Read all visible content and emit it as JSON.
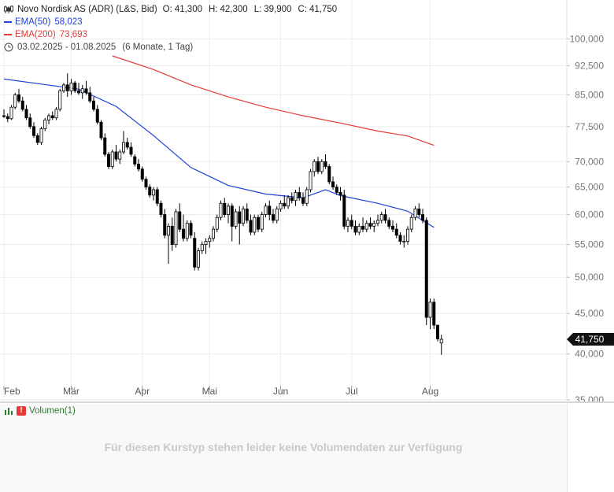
{
  "header": {
    "name": "Novo Nordisk AS (ADR) (L&S, Bid)",
    "open_label": "O:",
    "open": "41,300",
    "high_label": "H:",
    "high": "42,300",
    "low_label": "L:",
    "low": "39,900",
    "close_label": "C:",
    "close": "41,750",
    "ema50_label": "EMA(50)",
    "ema50_value": "58,023",
    "ema200_label": "EMA(200)",
    "ema200_value": "73,693",
    "date_range": "03.02.2025 - 01.08.2025",
    "period": "(6 Monate, 1 Tag)"
  },
  "volume_panel": {
    "label": "Volumen(1)",
    "message": "Für diesen Kurstyp stehen leider keine Volumendaten zur Verfügung"
  },
  "chart_data": {
    "type": "candlestick",
    "price_scale": "log",
    "ylim": [
      35000,
      112000
    ],
    "y_ticks": [
      35000,
      40000,
      45000,
      50000,
      55000,
      60000,
      65000,
      70000,
      77500,
      85000,
      92500,
      100000
    ],
    "y_tick_labels": [
      "35,000",
      "40,000",
      "45,000",
      "50,000",
      "55,000",
      "60,000",
      "65,000",
      "70,000",
      "77,500",
      "85,000",
      "92,500",
      "100,000"
    ],
    "x_tick_labels": [
      "Feb",
      "Mär",
      "Apr",
      "Mai",
      "Jun",
      "Jul",
      "Aug"
    ],
    "last_price_label": "41,750",
    "last_price": 41750,
    "grid": true,
    "colors": {
      "up": "#ffffff",
      "down": "#000000",
      "ema50": "#1f3fd6",
      "ema200": "#e53935",
      "grid": "#ececec",
      "axis_text": "#777777"
    },
    "candles": [
      [
        80000,
        81500,
        79500,
        79800
      ],
      [
        79800,
        80500,
        78500,
        79300
      ],
      [
        79300,
        82500,
        79000,
        82000
      ],
      [
        82000,
        85500,
        81500,
        85000
      ],
      [
        85000,
        86500,
        83000,
        83500
      ],
      [
        83500,
        84500,
        81000,
        81500
      ],
      [
        81500,
        82500,
        79000,
        79500
      ],
      [
        79500,
        80500,
        77000,
        77500
      ],
      [
        77500,
        78500,
        75000,
        75500
      ],
      [
        75500,
        76000,
        73500,
        74000
      ],
      [
        74000,
        77500,
        73500,
        77000
      ],
      [
        77000,
        79500,
        76500,
        79000
      ],
      [
        79000,
        80500,
        78000,
        80000
      ],
      [
        80000,
        81000,
        79000,
        79500
      ],
      [
        79500,
        82000,
        79000,
        81500
      ],
      [
        81500,
        86500,
        81000,
        86000
      ],
      [
        86000,
        88000,
        85500,
        87500
      ],
      [
        87500,
        90500,
        84500,
        86000
      ],
      [
        86000,
        89000,
        85000,
        88000
      ],
      [
        88000,
        88500,
        85500,
        86000
      ],
      [
        86000,
        88000,
        85000,
        85500
      ],
      [
        85500,
        87500,
        84000,
        86500
      ],
      [
        86500,
        88500,
        85000,
        85500
      ],
      [
        85500,
        87000,
        83000,
        83500
      ],
      [
        83500,
        84500,
        81000,
        81500
      ],
      [
        81500,
        82500,
        78000,
        78500
      ],
      [
        78500,
        79000,
        74500,
        75000
      ],
      [
        75000,
        76000,
        71000,
        71500
      ],
      [
        71500,
        72000,
        68500,
        69000
      ],
      [
        69000,
        72500,
        68500,
        72000
      ],
      [
        72000,
        73500,
        70000,
        70500
      ],
      [
        70500,
        72500,
        69500,
        72000
      ],
      [
        72000,
        76500,
        71500,
        74000
      ],
      [
        74000,
        75000,
        72500,
        73000
      ],
      [
        73000,
        74000,
        71000,
        71500
      ],
      [
        71000,
        71500,
        69000,
        69500
      ],
      [
        69500,
        70500,
        68000,
        68500
      ],
      [
        68500,
        69000,
        66000,
        66500
      ],
      [
        66500,
        67000,
        64500,
        65000
      ],
      [
        65000,
        65500,
        63000,
        63500
      ],
      [
        63500,
        65000,
        62500,
        64500
      ],
      [
        64500,
        65000,
        61500,
        62000
      ],
      [
        62000,
        62500,
        59500,
        60000
      ],
      [
        60000,
        61000,
        56000,
        56500
      ],
      [
        56500,
        58500,
        52000,
        58000
      ],
      [
        58000,
        59500,
        54000,
        55000
      ],
      [
        55000,
        61000,
        54500,
        60500
      ],
      [
        60500,
        62000,
        57000,
        57500
      ],
      [
        57500,
        60000,
        55500,
        56000
      ],
      [
        56000,
        59000,
        55500,
        58500
      ],
      [
        58500,
        59000,
        56000,
        56500
      ],
      [
        56000,
        57000,
        51000,
        51500
      ],
      [
        51500,
        54500,
        51000,
        54000
      ],
      [
        54000,
        55500,
        53500,
        55000
      ],
      [
        55000,
        56000,
        53500,
        55500
      ],
      [
        55500,
        56500,
        54500,
        56000
      ],
      [
        56000,
        58000,
        55500,
        57500
      ],
      [
        57500,
        60000,
        57000,
        59500
      ],
      [
        59500,
        62500,
        59000,
        62000
      ],
      [
        62000,
        63000,
        59500,
        60000
      ],
      [
        60000,
        62000,
        58500,
        61500
      ],
      [
        61500,
        62000,
        55500,
        58000
      ],
      [
        58000,
        61000,
        57500,
        60500
      ],
      [
        60500,
        61500,
        55000,
        58500
      ],
      [
        58500,
        61500,
        58000,
        61000
      ],
      [
        61000,
        62000,
        58500,
        59000
      ],
      [
        59000,
        60000,
        56500,
        57000
      ],
      [
        57000,
        60000,
        56500,
        59500
      ],
      [
        59500,
        60000,
        57000,
        57500
      ],
      [
        57500,
        60500,
        57000,
        60000
      ],
      [
        60000,
        62000,
        59500,
        61500
      ],
      [
        61500,
        62500,
        59000,
        60000
      ],
      [
        60000,
        61000,
        58500,
        59000
      ],
      [
        59000,
        61500,
        58500,
        61000
      ],
      [
        61000,
        62500,
        60500,
        62000
      ],
      [
        62000,
        63500,
        61000,
        61500
      ],
      [
        61500,
        63500,
        61000,
        63000
      ],
      [
        63000,
        64000,
        62000,
        62500
      ],
      [
        62500,
        64500,
        61500,
        64000
      ],
      [
        64000,
        65000,
        62500,
        63000
      ],
      [
        63000,
        64000,
        61500,
        62000
      ],
      [
        62000,
        65000,
        61500,
        64500
      ],
      [
        64500,
        68500,
        64000,
        68000
      ],
      [
        68000,
        70500,
        67000,
        70000
      ],
      [
        70000,
        71000,
        67500,
        68000
      ],
      [
        68000,
        70500,
        67500,
        70000
      ],
      [
        70000,
        71500,
        68500,
        69000
      ],
      [
        69000,
        69500,
        65500,
        66000
      ],
      [
        66000,
        67000,
        64500,
        65000
      ],
      [
        65000,
        65500,
        63500,
        64000
      ],
      [
        64000,
        65000,
        62500,
        63500
      ],
      [
        63500,
        64500,
        57500,
        58000
      ],
      [
        58000,
        59500,
        57000,
        59000
      ],
      [
        59000,
        60000,
        57500,
        58000
      ],
      [
        58000,
        59000,
        56500,
        57000
      ],
      [
        57000,
        58500,
        56500,
        58000
      ],
      [
        58000,
        59500,
        57000,
        57500
      ],
      [
        57500,
        59000,
        57000,
        58500
      ],
      [
        58500,
        59500,
        57500,
        58000
      ],
      [
        58000,
        59000,
        57000,
        58500
      ],
      [
        58500,
        60000,
        58000,
        59000
      ],
      [
        59000,
        60500,
        58500,
        60000
      ],
      [
        60000,
        61000,
        58500,
        59000
      ],
      [
        59000,
        59500,
        57500,
        58000
      ],
      [
        58000,
        59000,
        57000,
        57500
      ],
      [
        57500,
        58500,
        56000,
        56500
      ],
      [
        56500,
        57000,
        55000,
        55500
      ],
      [
        55500,
        56500,
        54500,
        55500
      ],
      [
        55500,
        58000,
        55000,
        57500
      ],
      [
        57500,
        60000,
        57000,
        59500
      ],
      [
        59500,
        61500,
        59000,
        61000
      ],
      [
        61000,
        62000,
        59500,
        60000
      ],
      [
        60000,
        61000,
        58500,
        59000
      ],
      [
        59000,
        59500,
        43500,
        44500
      ],
      [
        44500,
        47000,
        43000,
        46500
      ],
      [
        46500,
        47000,
        43000,
        43500
      ],
      [
        43500,
        43500,
        41500,
        41800
      ],
      [
        41300,
        42300,
        39900,
        41750
      ]
    ],
    "ema50": [
      [
        0,
        89000
      ],
      [
        10,
        87700
      ],
      [
        20,
        86400
      ],
      [
        30,
        82200
      ],
      [
        40,
        75500
      ],
      [
        50,
        68800
      ],
      [
        60,
        65300
      ],
      [
        70,
        63700
      ],
      [
        80,
        63000
      ],
      [
        86,
        64500
      ],
      [
        90,
        63400
      ],
      [
        100,
        62000
      ],
      [
        108,
        60600
      ],
      [
        115,
        57800
      ]
    ],
    "ema200": [
      [
        29,
        95200
      ],
      [
        40,
        91500
      ],
      [
        50,
        87500
      ],
      [
        60,
        84500
      ],
      [
        70,
        82000
      ],
      [
        80,
        80000
      ],
      [
        90,
        78300
      ],
      [
        100,
        76500
      ],
      [
        108,
        75400
      ],
      [
        115,
        73400
      ]
    ],
    "month_start_index": [
      0,
      18,
      37,
      55,
      74,
      93,
      114
    ]
  }
}
